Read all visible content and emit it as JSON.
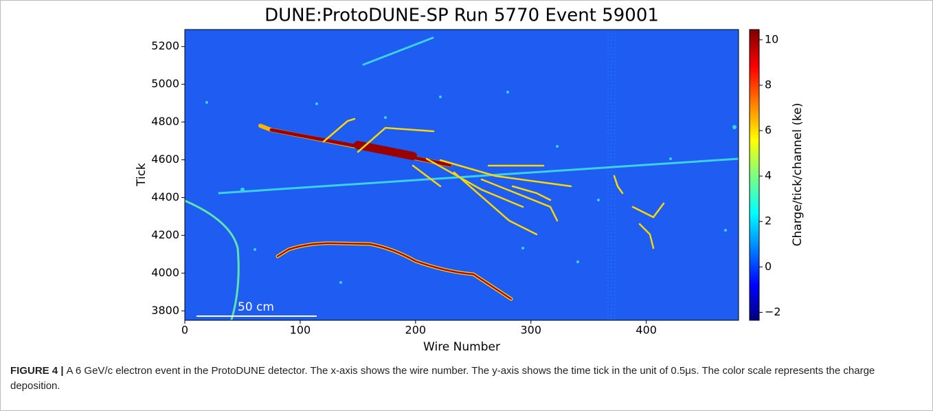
{
  "chart_data": {
    "type": "heatmap",
    "title": "DUNE:ProtoDUNE-SP Run 5770 Event 59001",
    "xlabel": "Wire Number",
    "ylabel": "Tick",
    "xlim": [
      0,
      480
    ],
    "xticks": [
      0,
      100,
      200,
      300,
      400
    ],
    "ylim": [
      3750,
      5290
    ],
    "yticks": [
      3800,
      4000,
      4200,
      4400,
      4600,
      4800,
      5000,
      5200
    ],
    "colormap": "jet",
    "colorbar": {
      "label": "Charge/tick/channel (ke)",
      "lim": [
        -2.35,
        10.45
      ],
      "ticks": [
        {
          "value": -2,
          "label": "−2"
        },
        0,
        2,
        4,
        6,
        8,
        10
      ]
    },
    "annotation": "50 cm"
  },
  "caption": {
    "label": "FIGURE 4 |",
    "text": "A 6 GeV/c electron event in the ProtoDUNE detector. The x-axis shows the wire number. The y-axis shows the time tick in the unit of 0.5μs. The color scale represents the charge deposition."
  }
}
